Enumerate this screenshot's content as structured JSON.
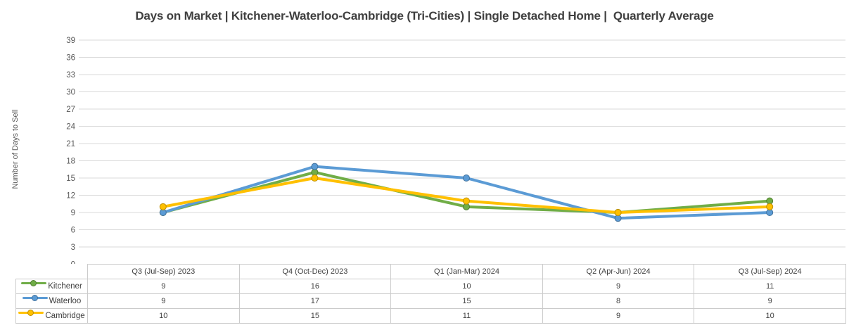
{
  "chart_data": {
    "type": "line",
    "title": "Days on Market | Kitchener-Waterloo-Cambridge (Tri-Cities) | Single Detached Home |  Quarterly Average",
    "xlabel": "",
    "ylabel": "Number of Days to Sell",
    "ylim": [
      0,
      39
    ],
    "yticks": [
      0,
      3,
      6,
      9,
      12,
      15,
      18,
      21,
      24,
      27,
      30,
      33,
      36,
      39
    ],
    "grid": true,
    "legend_position": "table-left",
    "categories": [
      "Q3 (Jul-Sep) 2023",
      "Q4 (Oct-Dec) 2023",
      "Q1 (Jan-Mar) 2024",
      "Q2 (Apr-Jun) 2024",
      "Q3 (Jul-Sep) 2024"
    ],
    "series": [
      {
        "name": "Kitchener",
        "color": "#70AD47",
        "marker_border": "#507E32",
        "values": [
          9,
          16,
          10,
          9,
          11
        ]
      },
      {
        "name": "Waterloo",
        "color": "#5B9BD5",
        "marker_border": "#41719C",
        "values": [
          9,
          17,
          15,
          8,
          9
        ]
      },
      {
        "name": "Cambridge",
        "color": "#FFC000",
        "marker_border": "#BF8F00",
        "values": [
          10,
          15,
          11,
          9,
          10
        ]
      }
    ]
  },
  "colors": {
    "gridline": "#DADADA",
    "tick_text": "#595959",
    "title_text": "#404040",
    "table_border": "#CBCBCB",
    "table_text": "#404040"
  }
}
